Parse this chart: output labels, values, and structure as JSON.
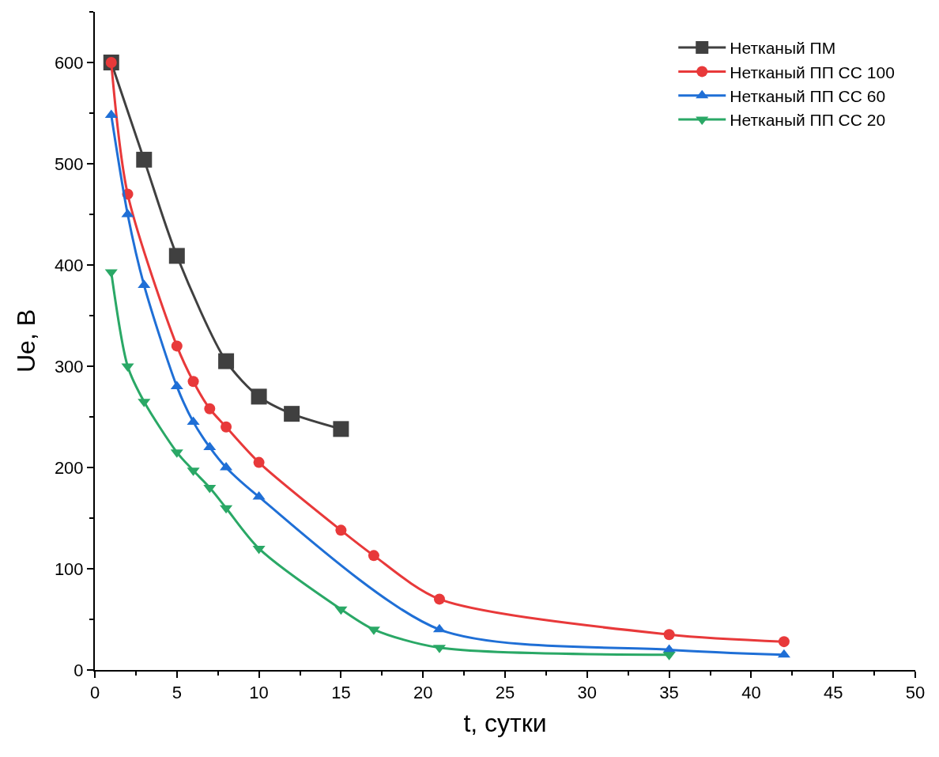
{
  "chart_data": {
    "type": "line",
    "xlabel": "t, сутки",
    "ylabel": "Ue, В",
    "xlim": [
      0,
      50
    ],
    "xticks": [
      0,
      5,
      10,
      15,
      20,
      25,
      30,
      35,
      40,
      45,
      50
    ],
    "ylim": [
      0,
      650
    ],
    "yticks": [
      0,
      100,
      200,
      300,
      400,
      500,
      600
    ],
    "legend": "top right",
    "line_style": "solid",
    "series": [
      {
        "name": "Нетканый ПМ",
        "color": "#404040",
        "marker": "square",
        "x": [
          1,
          3,
          5,
          8,
          10,
          12,
          15
        ],
        "values": [
          600,
          504,
          409,
          305,
          270,
          253,
          238
        ]
      },
      {
        "name": "Нетканый ПП СС 100",
        "color": "#e8393a",
        "marker": "circle",
        "x": [
          1,
          2,
          5,
          6,
          7,
          8,
          10,
          15,
          17,
          21,
          35,
          42
        ],
        "values": [
          600,
          470,
          320,
          285,
          258,
          240,
          205,
          138,
          113,
          70,
          35,
          28
        ]
      },
      {
        "name": "Нетканый ПП СС 60",
        "color": "#1f6fd6",
        "marker": "triangle",
        "x": [
          1,
          2,
          3,
          5,
          6,
          7,
          8,
          10,
          21,
          35,
          42
        ],
        "values": [
          548,
          450,
          380,
          280,
          245,
          220,
          200,
          171,
          40,
          20,
          15
        ]
      },
      {
        "name": "Нетканый ПП СС 20",
        "color": "#2aa866",
        "marker": "triangle-down",
        "x": [
          1,
          2,
          3,
          5,
          6,
          7,
          8,
          10,
          15,
          17,
          21,
          35
        ],
        "values": [
          393,
          300,
          265,
          215,
          197,
          180,
          160,
          120,
          60,
          40,
          22,
          15
        ]
      }
    ]
  }
}
